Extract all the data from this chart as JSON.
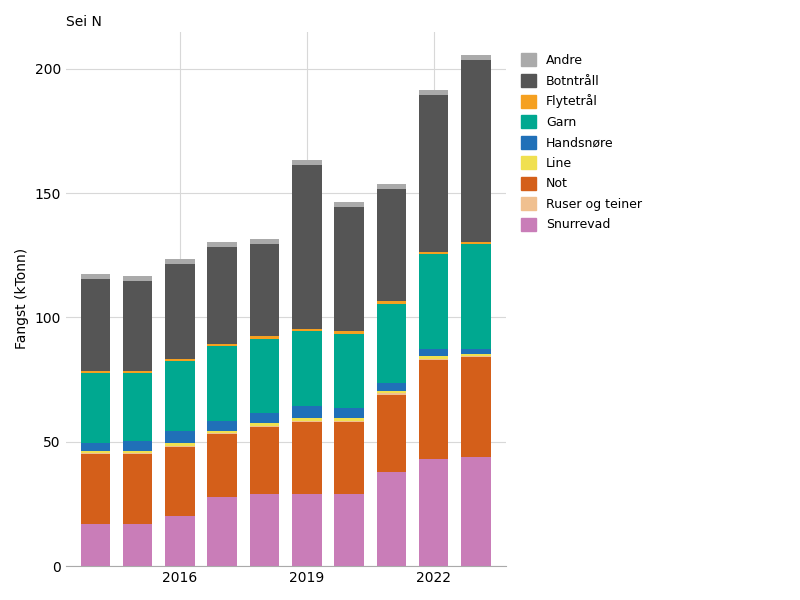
{
  "years": [
    2014,
    2015,
    2016,
    2017,
    2018,
    2019,
    2020,
    2021,
    2022,
    2023
  ],
  "title": "Sei N",
  "ylabel": "Fangst (kTonn)",
  "stack_order": [
    "Snurrevad",
    "Not",
    "Ruser og teiner",
    "Line",
    "Handsnøre",
    "Garn",
    "Flytetrål",
    "Botntråll",
    "Andre"
  ],
  "legend_order": [
    "Andre",
    "Botntråll",
    "Flytetrål",
    "Garn",
    "Handsnøre",
    "Line",
    "Not",
    "Ruser og teiner",
    "Snurrevad"
  ],
  "colors": {
    "Snurrevad": "#c97db8",
    "Not": "#d45f1a",
    "Ruser og teiner": "#f0c090",
    "Line": "#f0e050",
    "Handsnøre": "#2070b8",
    "Garn": "#00a890",
    "Flytetrål": "#f5a020",
    "Botntråll": "#555555",
    "Andre": "#aaaaaa"
  },
  "data": {
    "Snurrevad": [
      17,
      17,
      20,
      28,
      29,
      29,
      29,
      38,
      43,
      44
    ],
    "Not": [
      28,
      28,
      28,
      25,
      27,
      29,
      29,
      31,
      40,
      40
    ],
    "Ruser og teiner": [
      0.5,
      0.5,
      0.5,
      0.5,
      0.5,
      0.5,
      0.5,
      0.5,
      0.5,
      0.5
    ],
    "Line": [
      1,
      1,
      1,
      1,
      1,
      1,
      1,
      1,
      1,
      1
    ],
    "Handsnøre": [
      3,
      4,
      5,
      4,
      4,
      5,
      4,
      3,
      3,
      2
    ],
    "Garn": [
      28,
      27,
      28,
      30,
      30,
      30,
      30,
      32,
      38,
      42
    ],
    "Flytetrål": [
      1,
      1,
      1,
      1,
      1,
      1,
      1,
      1,
      1,
      1
    ],
    "Botntråll": [
      37,
      36,
      38,
      39,
      37,
      66,
      50,
      45,
      63,
      73
    ],
    "Andre": [
      2,
      2,
      2,
      2,
      2,
      2,
      2,
      2,
      2,
      2
    ]
  },
  "ylim": [
    0,
    215
  ],
  "yticks": [
    0,
    50,
    100,
    150,
    200
  ],
  "xtick_positions": [
    2016,
    2019,
    2022
  ],
  "background_color": "#ffffff",
  "grid_color": "#d8d8d8",
  "legend_fontsize": 9,
  "axis_fontsize": 10,
  "title_fontsize": 10,
  "bar_width": 0.7
}
